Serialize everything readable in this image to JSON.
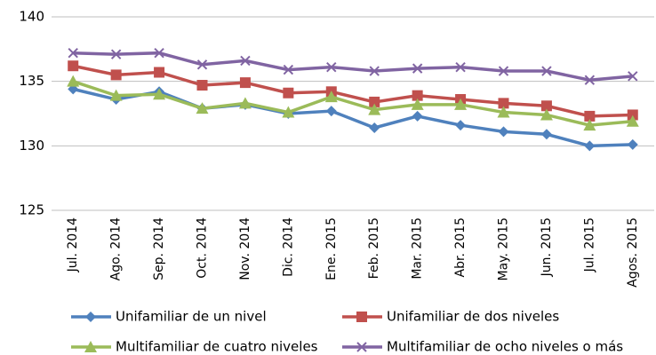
{
  "chart_data": {
    "type": "line",
    "categories": [
      "Jul. 2014",
      "Ago. 2014",
      "Sep. 2014",
      "Oct. 2014",
      "Nov. 2014",
      "Dic. 2014",
      "Ene. 2015",
      "Feb. 2015",
      "Mar. 2015",
      "Abr. 2015",
      "May. 2015",
      "Jun. 2015",
      "Jul. 2015",
      "Agos. 2015"
    ],
    "series": [
      {
        "name": "Unifamiliar de un nivel",
        "color": "#4f81bd",
        "marker": "diamond",
        "values": [
          134.4,
          133.6,
          134.2,
          132.9,
          133.2,
          132.5,
          132.7,
          131.4,
          132.3,
          131.6,
          131.1,
          130.9,
          130.0,
          130.1
        ]
      },
      {
        "name": "Unifamiliar de dos niveles",
        "color": "#c0504d",
        "marker": "square",
        "values": [
          136.2,
          135.5,
          135.7,
          134.7,
          134.9,
          134.1,
          134.2,
          133.4,
          133.9,
          133.6,
          133.3,
          133.1,
          132.3,
          132.4
        ]
      },
      {
        "name": "Multifamiliar de cuatro niveles",
        "color": "#9bbb59",
        "marker": "triangle",
        "values": [
          135.0,
          133.9,
          134.0,
          132.9,
          133.3,
          132.6,
          133.8,
          132.8,
          133.2,
          133.2,
          132.6,
          132.4,
          131.6,
          131.9
        ]
      },
      {
        "name": "Multifamiliar de ocho niveles o más",
        "color": "#8064a2",
        "marker": "x",
        "values": [
          137.2,
          137.1,
          137.2,
          136.3,
          136.6,
          135.9,
          136.1,
          135.8,
          136.0,
          136.1,
          135.8,
          135.8,
          135.1,
          135.4
        ]
      }
    ],
    "ylim": [
      125,
      140
    ],
    "yticks": [
      125,
      130,
      135,
      140
    ],
    "grid": true,
    "legend": "bottom"
  }
}
